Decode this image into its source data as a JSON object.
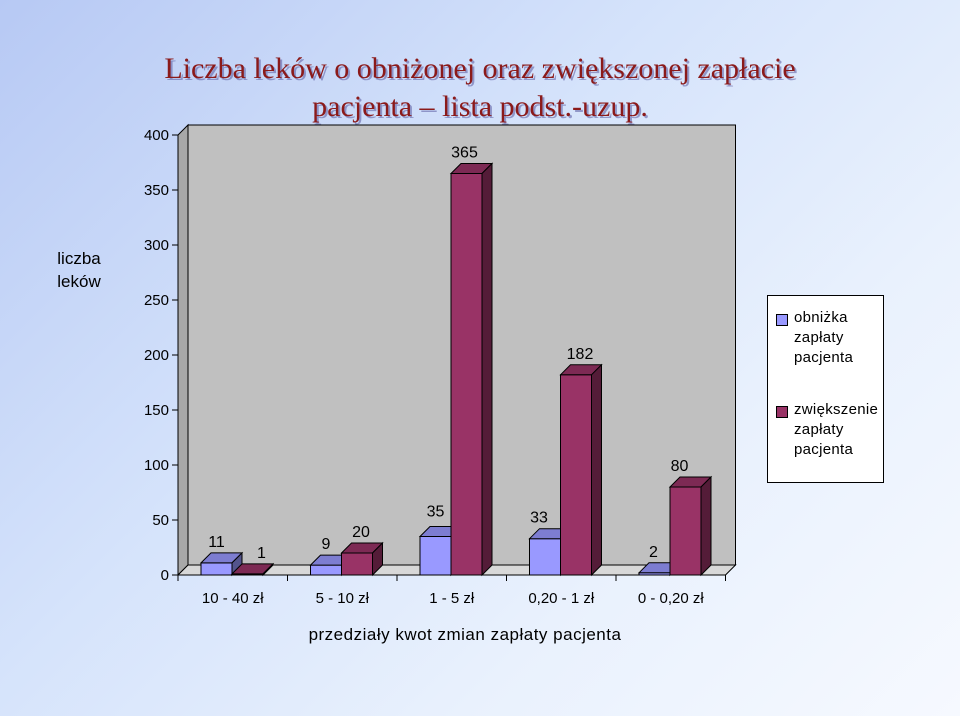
{
  "title_line1": "Liczba leków o obniżonej oraz zwiększonej zapłacie",
  "title_line2": "pacjenta – lista podst.-uzup.",
  "colors": {
    "series1": "#9999ff",
    "series2": "#993366",
    "plot_bg": "#c0c0c0"
  },
  "chart_data": {
    "type": "bar",
    "title": "Liczba leków o obniżonej oraz zwiększonej zapłacie pacjenta – lista podst.-uzup.",
    "xlabel": "przedziały kwot zmian zapłaty pacjenta",
    "ylabel": "liczba leków",
    "categories": [
      "10 - 40 zł",
      "5 - 10 zł",
      "1 - 5 zł",
      "0,20 - 1 zł",
      "0 - 0,20 zł"
    ],
    "series": [
      {
        "name": "obniżka zapłaty pacjenta",
        "values": [
          11,
          9,
          35,
          33,
          2
        ],
        "color": "#9999ff"
      },
      {
        "name": "zwiększenie zapłaty pacjenta",
        "values": [
          1,
          20,
          365,
          182,
          80
        ],
        "color": "#993366"
      }
    ],
    "ylim": [
      0,
      400
    ],
    "yticks": [
      0,
      50,
      100,
      150,
      200,
      250,
      300,
      350,
      400
    ],
    "legend_position": "right",
    "grid": false,
    "three_d": true
  }
}
